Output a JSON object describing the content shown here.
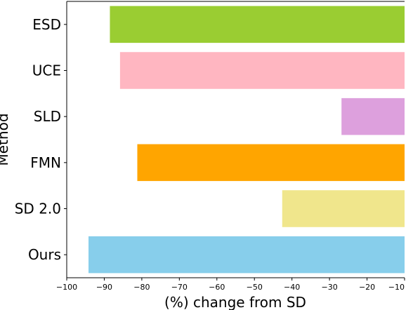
{
  "chart_data": {
    "type": "bar",
    "orientation": "horizontal",
    "categories": [
      "ESD",
      "UCE",
      "SLD",
      "FMN",
      "SD 2.0",
      "Ours"
    ],
    "values": [
      -88.5,
      -85.8,
      -26.8,
      -81.2,
      -42.6,
      -94.2
    ],
    "colors": [
      "#9acd32",
      "#ffb6c1",
      "#dda0dd",
      "#ffa500",
      "#f0e68c",
      "#87ceeb"
    ],
    "title": "",
    "xlabel": "(%) change from SD",
    "ylabel": "Method",
    "xlim": [
      -100,
      -10
    ],
    "xticks": [
      -100,
      -90,
      -80,
      -70,
      -60,
      -50,
      -40,
      -30,
      -20,
      -10
    ],
    "xtick_labels": [
      "−100",
      "−90",
      "−80",
      "−70",
      "−60",
      "−50",
      "−40",
      "−30",
      "−20",
      "−10"
    ],
    "grid": false,
    "legend": "none"
  }
}
